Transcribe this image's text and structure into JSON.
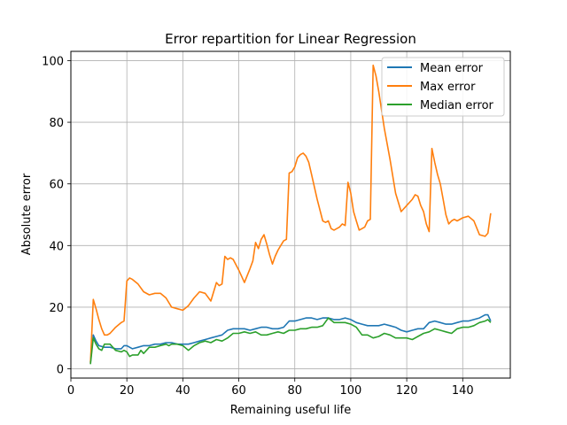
{
  "chart_data": {
    "type": "line",
    "title": "Error repartition for Linear Regression",
    "xlabel": "Remaining useful life",
    "ylabel": "Absolute error",
    "xlim": [
      0,
      157
    ],
    "ylim": [
      -3,
      103
    ],
    "xticks": [
      0,
      20,
      40,
      60,
      80,
      100,
      120,
      140
    ],
    "yticks": [
      0,
      20,
      40,
      60,
      80,
      100
    ],
    "grid": true,
    "legend_position": "top-right",
    "series": [
      {
        "name": "Mean error",
        "color": "#1f77b4",
        "points": [
          [
            7,
            2
          ],
          [
            8,
            11
          ],
          [
            9,
            9
          ],
          [
            10,
            7.5
          ],
          [
            12,
            7
          ],
          [
            14,
            7
          ],
          [
            16,
            6.5
          ],
          [
            18,
            6.5
          ],
          [
            19,
            7.5
          ],
          [
            20,
            7.5
          ],
          [
            22,
            6.5
          ],
          [
            24,
            7
          ],
          [
            26,
            7.5
          ],
          [
            28,
            7.5
          ],
          [
            30,
            8
          ],
          [
            32,
            8
          ],
          [
            34,
            8.5
          ],
          [
            36,
            8.5
          ],
          [
            38,
            8
          ],
          [
            40,
            8
          ],
          [
            42,
            8
          ],
          [
            44,
            8.5
          ],
          [
            46,
            9
          ],
          [
            48,
            9.5
          ],
          [
            50,
            10
          ],
          [
            52,
            10.5
          ],
          [
            54,
            11
          ],
          [
            56,
            12.5
          ],
          [
            58,
            13
          ],
          [
            60,
            13
          ],
          [
            62,
            13
          ],
          [
            64,
            12.5
          ],
          [
            66,
            13
          ],
          [
            68,
            13.5
          ],
          [
            70,
            13.5
          ],
          [
            72,
            13
          ],
          [
            74,
            13
          ],
          [
            76,
            13.5
          ],
          [
            78,
            15.5
          ],
          [
            80,
            15.5
          ],
          [
            82,
            16
          ],
          [
            84,
            16.5
          ],
          [
            86,
            16.5
          ],
          [
            88,
            16
          ],
          [
            90,
            16.5
          ],
          [
            92,
            16.5
          ],
          [
            94,
            16
          ],
          [
            96,
            16
          ],
          [
            98,
            16.5
          ],
          [
            100,
            16
          ],
          [
            102,
            15
          ],
          [
            104,
            14.5
          ],
          [
            106,
            14
          ],
          [
            108,
            14
          ],
          [
            110,
            14
          ],
          [
            112,
            14.5
          ],
          [
            114,
            14
          ],
          [
            116,
            13.5
          ],
          [
            118,
            12.5
          ],
          [
            120,
            12
          ],
          [
            122,
            12.5
          ],
          [
            124,
            13
          ],
          [
            126,
            13
          ],
          [
            128,
            15
          ],
          [
            130,
            15.5
          ],
          [
            132,
            15
          ],
          [
            134,
            14.5
          ],
          [
            136,
            14.5
          ],
          [
            138,
            15
          ],
          [
            140,
            15.5
          ],
          [
            142,
            15.5
          ],
          [
            144,
            16
          ],
          [
            146,
            16.5
          ],
          [
            148,
            17.5
          ],
          [
            149,
            17.5
          ],
          [
            150,
            15.5
          ]
        ]
      },
      {
        "name": "Max error",
        "color": "#ff7f0e",
        "points": [
          [
            7,
            2
          ],
          [
            8,
            22.5
          ],
          [
            9,
            19.5
          ],
          [
            10,
            16
          ],
          [
            11,
            13
          ],
          [
            12,
            11
          ],
          [
            13,
            11
          ],
          [
            14,
            11.5
          ],
          [
            16,
            13.5
          ],
          [
            18,
            15
          ],
          [
            19,
            15.5
          ],
          [
            20,
            28.5
          ],
          [
            21,
            29.5
          ],
          [
            22,
            29
          ],
          [
            24,
            27.5
          ],
          [
            26,
            25
          ],
          [
            28,
            24
          ],
          [
            30,
            24.5
          ],
          [
            32,
            24.5
          ],
          [
            34,
            23
          ],
          [
            36,
            20
          ],
          [
            38,
            19.5
          ],
          [
            40,
            19
          ],
          [
            42,
            20.5
          ],
          [
            44,
            23
          ],
          [
            46,
            25
          ],
          [
            48,
            24.5
          ],
          [
            50,
            22
          ],
          [
            52,
            28
          ],
          [
            53,
            27
          ],
          [
            54,
            27.5
          ],
          [
            55,
            36.5
          ],
          [
            56,
            35.5
          ],
          [
            57,
            36
          ],
          [
            58,
            35.5
          ],
          [
            60,
            32
          ],
          [
            62,
            28
          ],
          [
            64,
            32.5
          ],
          [
            65,
            35
          ],
          [
            66,
            41
          ],
          [
            67,
            39
          ],
          [
            68,
            42
          ],
          [
            69,
            43.5
          ],
          [
            70,
            40.5
          ],
          [
            71,
            37
          ],
          [
            72,
            34
          ],
          [
            73,
            36.5
          ],
          [
            74,
            38.5
          ],
          [
            75,
            40
          ],
          [
            76,
            41.5
          ],
          [
            77,
            42
          ],
          [
            78,
            63.5
          ],
          [
            79,
            64
          ],
          [
            80,
            65.5
          ],
          [
            81,
            68.5
          ],
          [
            82,
            69.5
          ],
          [
            83,
            70
          ],
          [
            84,
            69
          ],
          [
            85,
            67
          ],
          [
            86,
            63
          ],
          [
            88,
            55
          ],
          [
            90,
            48
          ],
          [
            91,
            47.5
          ],
          [
            92,
            48
          ],
          [
            93,
            45.5
          ],
          [
            94,
            45
          ],
          [
            96,
            46
          ],
          [
            97,
            47
          ],
          [
            98,
            46.5
          ],
          [
            99,
            60.5
          ],
          [
            100,
            57
          ],
          [
            101,
            51
          ],
          [
            102,
            48
          ],
          [
            103,
            45
          ],
          [
            104,
            45.5
          ],
          [
            105,
            46
          ],
          [
            106,
            48
          ],
          [
            107,
            48.5
          ],
          [
            108,
            98.5
          ],
          [
            109,
            95
          ],
          [
            110,
            90
          ],
          [
            112,
            78
          ],
          [
            114,
            68
          ],
          [
            116,
            57
          ],
          [
            118,
            51
          ],
          [
            120,
            53
          ],
          [
            122,
            55
          ],
          [
            123,
            56.5
          ],
          [
            124,
            56
          ],
          [
            125,
            53
          ],
          [
            126,
            51
          ],
          [
            127,
            47
          ],
          [
            128,
            44.5
          ],
          [
            129,
            71.5
          ],
          [
            130,
            67
          ],
          [
            131,
            63
          ],
          [
            132,
            60
          ],
          [
            133,
            55
          ],
          [
            134,
            50
          ],
          [
            135,
            47
          ],
          [
            136,
            48
          ],
          [
            137,
            48.5
          ],
          [
            138,
            48
          ],
          [
            140,
            49
          ],
          [
            142,
            49.5
          ],
          [
            144,
            48
          ],
          [
            146,
            43.5
          ],
          [
            148,
            43
          ],
          [
            149,
            44
          ],
          [
            150,
            50.5
          ]
        ]
      },
      {
        "name": "Median error",
        "color": "#2ca02c",
        "points": [
          [
            7,
            1.5
          ],
          [
            8,
            10
          ],
          [
            9,
            8
          ],
          [
            10,
            6.5
          ],
          [
            11,
            6
          ],
          [
            12,
            8
          ],
          [
            14,
            8
          ],
          [
            16,
            6
          ],
          [
            18,
            5.5
          ],
          [
            19,
            6
          ],
          [
            20,
            5.5
          ],
          [
            21,
            4
          ],
          [
            22,
            4.5
          ],
          [
            24,
            4.5
          ],
          [
            25,
            6
          ],
          [
            26,
            5
          ],
          [
            28,
            7
          ],
          [
            30,
            7
          ],
          [
            32,
            7.5
          ],
          [
            34,
            8
          ],
          [
            35,
            7.5
          ],
          [
            36,
            8
          ],
          [
            38,
            8
          ],
          [
            40,
            7.5
          ],
          [
            42,
            6
          ],
          [
            44,
            7.5
          ],
          [
            46,
            8.5
          ],
          [
            48,
            9
          ],
          [
            50,
            8.5
          ],
          [
            52,
            9.5
          ],
          [
            54,
            9
          ],
          [
            56,
            10
          ],
          [
            58,
            11.5
          ],
          [
            60,
            11.5
          ],
          [
            62,
            12
          ],
          [
            64,
            11.5
          ],
          [
            66,
            12
          ],
          [
            68,
            11
          ],
          [
            70,
            11
          ],
          [
            72,
            11.5
          ],
          [
            74,
            12
          ],
          [
            76,
            11.5
          ],
          [
            78,
            12.5
          ],
          [
            80,
            12.5
          ],
          [
            82,
            13
          ],
          [
            84,
            13
          ],
          [
            86,
            13.5
          ],
          [
            88,
            13.5
          ],
          [
            90,
            14
          ],
          [
            92,
            16.5
          ],
          [
            94,
            15
          ],
          [
            96,
            15
          ],
          [
            98,
            15
          ],
          [
            100,
            14.5
          ],
          [
            102,
            13.5
          ],
          [
            104,
            11
          ],
          [
            106,
            11
          ],
          [
            108,
            10
          ],
          [
            110,
            10.5
          ],
          [
            112,
            11.5
          ],
          [
            114,
            11
          ],
          [
            116,
            10
          ],
          [
            118,
            10
          ],
          [
            120,
            10
          ],
          [
            122,
            9.5
          ],
          [
            124,
            10.5
          ],
          [
            126,
            11.5
          ],
          [
            128,
            12
          ],
          [
            130,
            13
          ],
          [
            132,
            12.5
          ],
          [
            134,
            12
          ],
          [
            136,
            11.5
          ],
          [
            138,
            13
          ],
          [
            140,
            13.5
          ],
          [
            142,
            13.5
          ],
          [
            144,
            14
          ],
          [
            146,
            15
          ],
          [
            148,
            15.5
          ],
          [
            149,
            16
          ],
          [
            150,
            15
          ]
        ]
      }
    ]
  }
}
